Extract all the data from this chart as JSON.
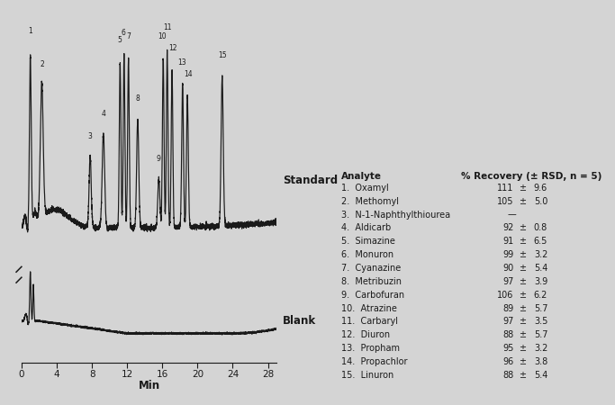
{
  "bg_color": "#d4d4d4",
  "x_min": 0,
  "x_max": 29,
  "x_ticks": [
    0,
    4,
    8,
    12,
    16,
    20,
    24,
    28
  ],
  "xlabel": "Min",
  "standard_label": "Standard",
  "blank_label": "Blank",
  "peak_numbers": [
    "1",
    "2",
    "3",
    "4",
    "5",
    "6",
    "7",
    "8",
    "9",
    "10",
    "11",
    "12",
    "13",
    "14",
    "15"
  ],
  "peak_times": [
    1.0,
    2.3,
    7.8,
    9.3,
    11.2,
    11.65,
    12.15,
    13.2,
    15.6,
    16.1,
    16.55,
    17.1,
    18.3,
    18.85,
    22.8
  ],
  "peak_heights": [
    0.9,
    0.72,
    0.38,
    0.5,
    0.88,
    0.92,
    0.9,
    0.58,
    0.26,
    0.9,
    0.94,
    0.84,
    0.76,
    0.7,
    0.8
  ],
  "peak_widths": [
    0.1,
    0.16,
    0.12,
    0.14,
    0.09,
    0.09,
    0.09,
    0.12,
    0.12,
    0.09,
    0.09,
    0.09,
    0.1,
    0.1,
    0.12
  ],
  "table_header_col1": "Analyte",
  "table_header_col2": "% Recovery (± RSD, n = 5)",
  "table_rows": [
    [
      "1.",
      "Oxamyl",
      "111",
      "±",
      "9.6"
    ],
    [
      "2.",
      "Methomyl",
      "105",
      "±",
      "5.0"
    ],
    [
      "3.",
      "N-1-Naphthylthiourea",
      "—",
      "",
      ""
    ],
    [
      "4.",
      "Aldicarb",
      "92",
      "±",
      "0.8"
    ],
    [
      "5.",
      "Simazine",
      "91",
      "±",
      "6.5"
    ],
    [
      "6.",
      "Monuron",
      "99",
      "±",
      "3.2"
    ],
    [
      "7.",
      "Cyanazine",
      "90",
      "±",
      "5.4"
    ],
    [
      "8.",
      "Metribuzin",
      "97",
      "±",
      "3.9"
    ],
    [
      "9.",
      "Carbofuran",
      "106",
      "±",
      "6.2"
    ],
    [
      "10.",
      "Atrazine",
      "89",
      "±",
      "5.7"
    ],
    [
      "11.",
      "Carbaryl",
      "97",
      "±",
      "3.5"
    ],
    [
      "12.",
      "Diuron",
      "88",
      "±",
      "5.7"
    ],
    [
      "13.",
      "Propham",
      "95",
      "±",
      "3.2"
    ],
    [
      "14.",
      "Propachlor",
      "96",
      "±",
      "3.8"
    ],
    [
      "15.",
      "Linuron",
      "88",
      "±",
      "5.4"
    ]
  ],
  "line_color": "#1a1a1a",
  "font_color": "#1a1a1a",
  "fig_width": 6.83,
  "fig_height": 4.5,
  "dpi": 100
}
